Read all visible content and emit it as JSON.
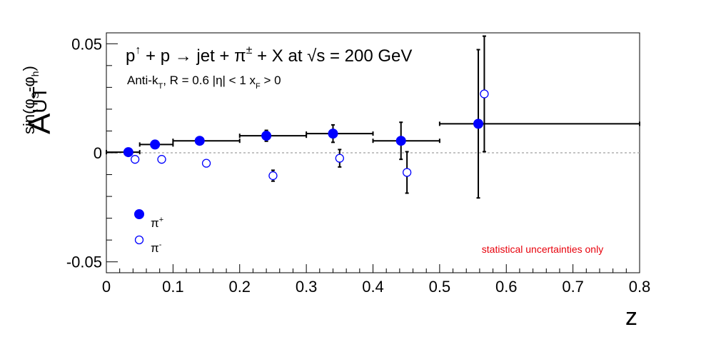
{
  "chart_data": {
    "type": "scatter",
    "title": "",
    "annotation_line1": {
      "p": "p",
      "up": "↑",
      "mid": " + p → jet + π",
      "pm": "±",
      "end": " + X at  √s = 200 GeV"
    },
    "annotation_line2": {
      "a": "Anti-k",
      "t": "T",
      "b": ", R = 0.6   |η| < 1   x",
      "f": "F",
      "c": " > 0"
    },
    "xlabel": "z",
    "ylabel": {
      "A": "A",
      "UT": "UT",
      "sup_a": "sin(φ",
      "sup_S": "S",
      "sup_b": "-φ",
      "sup_h": "h",
      "sup_c": ")"
    },
    "xlim": [
      0,
      0.8
    ],
    "ylim": [
      -0.055,
      0.055
    ],
    "x_ticks": [
      {
        "v": 0,
        "label": "0"
      },
      {
        "v": 0.1,
        "label": "0.1"
      },
      {
        "v": 0.2,
        "label": "0.2"
      },
      {
        "v": 0.3,
        "label": "0.3"
      },
      {
        "v": 0.4,
        "label": "0.4"
      },
      {
        "v": 0.5,
        "label": "0.5"
      },
      {
        "v": 0.6,
        "label": "0.6"
      },
      {
        "v": 0.7,
        "label": "0.7"
      },
      {
        "v": 0.8,
        "label": "0.8"
      }
    ],
    "y_ticks": [
      {
        "v": -0.05,
        "label": "-0.05"
      },
      {
        "v": 0,
        "label": "0"
      },
      {
        "v": 0.05,
        "label": "0.05"
      }
    ],
    "grid": false,
    "reference_line_y": 0,
    "legend_position": "bottom-left",
    "series": [
      {
        "name": "π+",
        "label_main": "π",
        "label_sup": "+",
        "marker": "filled-circle",
        "color": "#0000ff",
        "points": [
          {
            "x": 0.033,
            "y": 0.0003,
            "xlo": 0.0,
            "xhi": 0.05,
            "err": 0.0015
          },
          {
            "x": 0.073,
            "y": 0.0038,
            "xlo": 0.05,
            "xhi": 0.1,
            "err": 0.0015
          },
          {
            "x": 0.14,
            "y": 0.0055,
            "xlo": 0.1,
            "xhi": 0.2,
            "err": 0.0015
          },
          {
            "x": 0.24,
            "y": 0.0078,
            "xlo": 0.2,
            "xhi": 0.3,
            "err": 0.0025
          },
          {
            "x": 0.34,
            "y": 0.0088,
            "xlo": 0.3,
            "xhi": 0.4,
            "err": 0.004
          },
          {
            "x": 0.442,
            "y": 0.0055,
            "xlo": 0.4,
            "xhi": 0.5,
            "err": 0.0085
          },
          {
            "x": 0.558,
            "y": 0.0133,
            "xlo": 0.5,
            "xhi": 0.8,
            "err": 0.034
          }
        ]
      },
      {
        "name": "π-",
        "label_main": "π",
        "label_sup": "-",
        "marker": "open-circle",
        "color": "#0000ff",
        "points": [
          {
            "x": 0.043,
            "y": -0.003,
            "err": 0.0
          },
          {
            "x": 0.083,
            "y": -0.003,
            "err": 0.0
          },
          {
            "x": 0.15,
            "y": -0.0048,
            "err": 0.0
          },
          {
            "x": 0.25,
            "y": -0.0105,
            "err": 0.0025
          },
          {
            "x": 0.35,
            "y": -0.0025,
            "err": 0.004
          },
          {
            "x": 0.451,
            "y": -0.009,
            "err": 0.0095
          },
          {
            "x": 0.567,
            "y": 0.027,
            "err": 0.0265
          }
        ]
      }
    ],
    "note": "statistical uncertainties only"
  }
}
